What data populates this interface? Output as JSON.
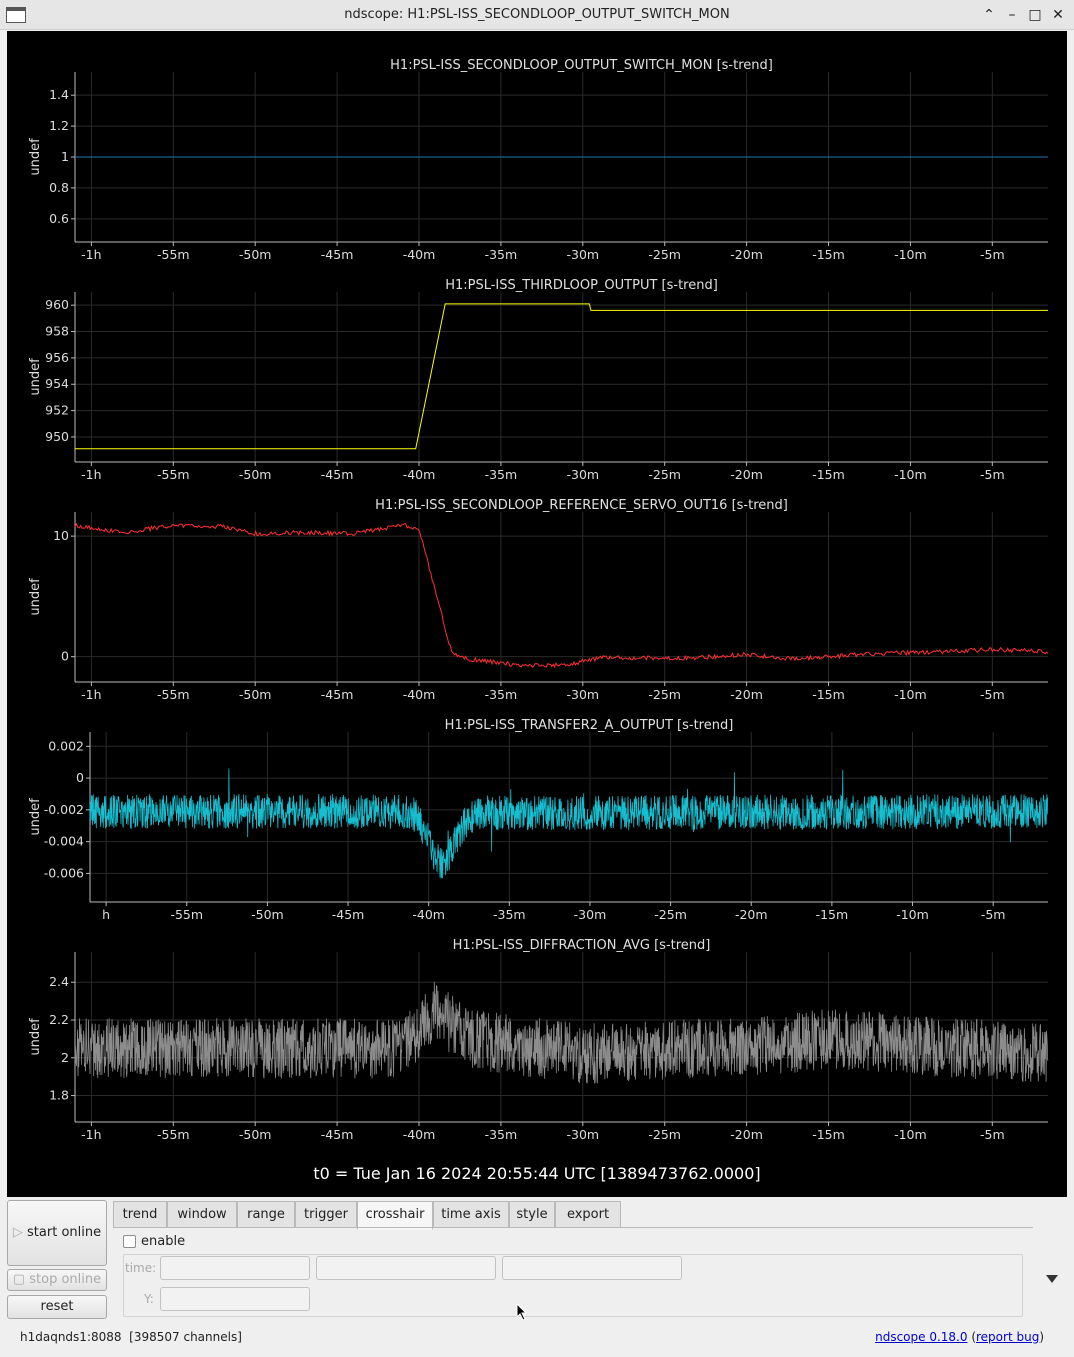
{
  "window": {
    "title": "ndscope: H1:PSL-ISS_SECONDLOOP_OUTPUT_SWITCH_MON",
    "buttons": [
      "minimize-up",
      "minimize",
      "maximize",
      "close"
    ]
  },
  "t0_label": "t0 = Tue Jan 16 2024 20:55:44 UTC [1389473762.0000]",
  "chart_data": [
    {
      "type": "line",
      "title": "H1:PSL-ISS_SECONDLOOP_OUTPUT_SWITCH_MON [s-trend]",
      "ylabel": "undef",
      "color": "#1f77b4",
      "x_unit": "minutes relative to t0",
      "xlim": [
        -61,
        -1.6
      ],
      "ylim": [
        0.45,
        1.55
      ],
      "yticks": [
        0.6,
        0.8,
        1,
        1.2,
        1.4
      ],
      "ytick_labels": [
        "0.6",
        "0.8",
        "1",
        "1.2",
        "1.4"
      ],
      "xticks": [
        -60,
        -55,
        -50,
        -45,
        -40,
        -35,
        -30,
        -25,
        -20,
        -15,
        -10,
        -5
      ],
      "xtick_labels": [
        "-1h",
        "-55m",
        "-50m",
        "-45m",
        "-40m",
        "-35m",
        "-30m",
        "-25m",
        "-20m",
        "-15m",
        "-10m",
        "-5m"
      ],
      "x": [
        -61,
        -1.6
      ],
      "y": [
        1,
        1
      ]
    },
    {
      "type": "line",
      "title": "H1:PSL-ISS_THIRDLOOP_OUTPUT [s-trend]",
      "ylabel": "undef",
      "color": "#ffff00",
      "xlim": [
        -61,
        -1.6
      ],
      "ylim": [
        948.1,
        961.0
      ],
      "yticks": [
        950,
        952,
        954,
        956,
        958,
        960
      ],
      "ytick_labels": [
        "950",
        "952",
        "954",
        "956",
        "958",
        "960"
      ],
      "xticks": [
        -60,
        -55,
        -50,
        -45,
        -40,
        -35,
        -30,
        -25,
        -20,
        -15,
        -10,
        -5
      ],
      "xtick_labels": [
        "-1h",
        "-55m",
        "-50m",
        "-45m",
        "-40m",
        "-35m",
        "-30m",
        "-25m",
        "-20m",
        "-15m",
        "-10m",
        "-5m"
      ],
      "x": [
        -61,
        -40.2,
        -38.4,
        -29.6,
        -29.5,
        -29.4,
        -1.6
      ],
      "y": [
        949.1,
        949.1,
        960.1,
        960.1,
        959.6,
        959.6,
        959.6
      ]
    },
    {
      "type": "line",
      "title": "H1:PSL-ISS_SECONDLOOP_REFERENCE_SERVO_OUT16 [s-trend]",
      "ylabel": "undef",
      "color": "#ff3030",
      "xlim": [
        -61,
        -1.6
      ],
      "ylim": [
        -2.1,
        12.0
      ],
      "yticks": [
        0,
        10
      ],
      "ytick_labels": [
        "0",
        "10"
      ],
      "xticks": [
        -60,
        -55,
        -50,
        -45,
        -40,
        -35,
        -30,
        -25,
        -20,
        -15,
        -10,
        -5
      ],
      "xtick_labels": [
        "-1h",
        "-55m",
        "-50m",
        "-45m",
        "-40m",
        "-35m",
        "-30m",
        "-25m",
        "-20m",
        "-15m",
        "-10m",
        "-5m"
      ],
      "x": [
        -61,
        -58,
        -55,
        -52,
        -50,
        -47,
        -44,
        -41,
        -40,
        -39,
        -38,
        -37,
        -34,
        -31,
        -29,
        -26,
        -23,
        -20,
        -17,
        -14,
        -11,
        -8,
        -5,
        -1.6
      ],
      "y": [
        10.9,
        10.3,
        10.9,
        10.8,
        10.2,
        10.3,
        10.2,
        10.9,
        10.6,
        5.5,
        0.3,
        -0.2,
        -0.7,
        -0.7,
        -0.1,
        -0.1,
        -0.1,
        0.2,
        -0.2,
        0.1,
        0.3,
        0.4,
        0.6,
        0.4
      ]
    },
    {
      "type": "line",
      "title": "H1:PSL-ISS_TRANSFER2_A_OUTPUT [s-trend]",
      "ylabel": "undef",
      "color": "#17becf",
      "xlim": [
        -61,
        -1.6
      ],
      "ylim": [
        -0.0078,
        0.0029
      ],
      "yticks": [
        -0.006,
        -0.004,
        -0.002,
        0,
        0.002
      ],
      "ytick_labels": [
        "-0.006",
        "-0.004",
        "-0.002",
        "0",
        "0.002"
      ],
      "xticks": [
        -60,
        -55,
        -50,
        -45,
        -40,
        -35,
        -30,
        -25,
        -20,
        -15,
        -10,
        -5
      ],
      "xtick_labels": [
        "h",
        "-55m",
        "-50m",
        "-45m",
        "-40m",
        "-35m",
        "-30m",
        "-25m",
        "-20m",
        "-15m",
        "-10m",
        "-5m"
      ],
      "mean": -0.0021,
      "x": [
        -61,
        -41,
        -40,
        -39.5,
        -39,
        -38,
        -37,
        -1.6
      ],
      "y": [
        -0.0021,
        -0.0021,
        -0.0038,
        -0.0052,
        -0.0055,
        -0.0032,
        -0.0022,
        -0.0021
      ]
    },
    {
      "type": "line",
      "title": "H1:PSL-ISS_DIFFRACTION_AVG [s-trend]",
      "ylabel": "undef",
      "color": "#8c8c8c",
      "xlim": [
        -61,
        -1.6
      ],
      "ylim": [
        1.66,
        2.56
      ],
      "yticks": [
        1.8,
        2.0,
        2.2,
        2.4
      ],
      "ytick_labels": [
        "1.8",
        "2",
        "2.2",
        "2.4"
      ],
      "xticks": [
        -60,
        -55,
        -50,
        -45,
        -40,
        -35,
        -30,
        -25,
        -20,
        -15,
        -10,
        -5
      ],
      "xtick_labels": [
        "-1h",
        "-55m",
        "-50m",
        "-45m",
        "-40m",
        "-35m",
        "-30m",
        "-25m",
        "-20m",
        "-15m",
        "-10m",
        "-5m"
      ],
      "mean": 2.05,
      "x": [
        -61,
        -41,
        -39,
        -37,
        -30,
        -17,
        -15,
        -1.6
      ],
      "y": [
        2.05,
        2.05,
        2.25,
        2.1,
        2.02,
        2.08,
        2.1,
        2.02
      ]
    }
  ],
  "controls": {
    "start_online": "start online",
    "stop_online": "stop online",
    "reset": "reset",
    "tabs": [
      "trend",
      "window",
      "range",
      "trigger",
      "crosshair",
      "time axis",
      "style",
      "export"
    ],
    "active_tab": "crosshair",
    "enable_label": "enable",
    "time_label": "time:",
    "y_label": "Y:"
  },
  "status": {
    "server": "h1daqnds1:8088",
    "channels": "[398507 channels]",
    "version_link": "ndscope 0.18.0",
    "bug_link": "report bug"
  }
}
